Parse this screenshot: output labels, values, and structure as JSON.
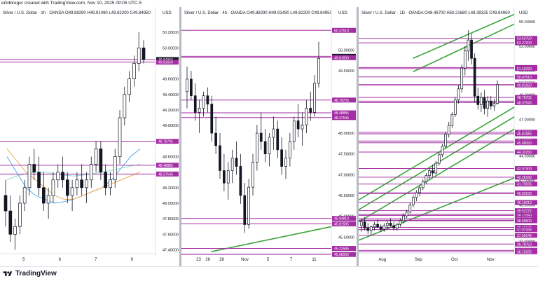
{
  "creator_line": "erlidbreger created with TradingView.com, Nov 10, 2025 09:05 UTC-5",
  "footer_brand": "TradingView",
  "colors": {
    "level": "#a42ea4",
    "up": "#ffffff",
    "down": "#131722",
    "green": "#3aa53a",
    "blue": "#4aa0e6",
    "orange": "#f0a040",
    "teal": "#7fd6d0",
    "mid": "#8f2f8f"
  },
  "chart_data": [
    {
      "type": "candlestick",
      "header": "Silver / U.S. Dollar · 1h · OANDA  O49.88290 H49.91490 L49.82200 C49.84950",
      "currency": "USD",
      "ylim": [
        47.35,
        50.4
      ],
      "y_ticks": [
        "50.20000",
        "50.00000",
        "49.60000",
        "49.40000",
        "49.20000",
        "49.00000",
        "48.60000",
        "48.20000",
        "48.00000",
        "47.80000",
        "47.60000",
        "47.40000"
      ],
      "x_ticks": [
        "5",
        "6",
        "7",
        "9"
      ],
      "levels": [
        {
          "label": "49.84950",
          "value": 49.8495,
          "style": "dark"
        },
        {
          "label": "49.81650",
          "value": 49.8165,
          "style": "normal"
        },
        {
          "label": "48.79705",
          "value": 48.797,
          "style": "normal"
        },
        {
          "label": "48.48885",
          "value": 48.4889,
          "style": "normal"
        },
        {
          "label": "48.37545",
          "value": 48.3755,
          "style": "normal"
        }
      ],
      "candles": [
        [
          48.1,
          48.3,
          47.7,
          47.9
        ],
        [
          47.9,
          48.1,
          47.5,
          47.6
        ],
        [
          47.6,
          47.8,
          47.4,
          47.7
        ],
        [
          47.7,
          48.1,
          47.6,
          48.0
        ],
        [
          48.0,
          48.3,
          47.9,
          48.2
        ],
        [
          48.2,
          48.6,
          48.1,
          48.5
        ],
        [
          48.5,
          48.7,
          48.3,
          48.4
        ],
        [
          48.4,
          48.6,
          48.1,
          48.2
        ],
        [
          48.2,
          48.4,
          47.9,
          48.0
        ],
        [
          48.0,
          48.2,
          47.8,
          48.1
        ],
        [
          48.1,
          48.4,
          48.0,
          48.3
        ],
        [
          48.3,
          48.5,
          48.2,
          48.4
        ],
        [
          48.4,
          48.6,
          48.2,
          48.3
        ],
        [
          48.3,
          48.4,
          48.0,
          48.1
        ],
        [
          48.1,
          48.3,
          47.9,
          48.2
        ],
        [
          48.2,
          48.4,
          48.1,
          48.3
        ],
        [
          48.3,
          48.5,
          48.1,
          48.2
        ],
        [
          48.2,
          48.4,
          48.0,
          48.3
        ],
        [
          48.3,
          48.6,
          48.2,
          48.5
        ],
        [
          48.5,
          48.8,
          48.4,
          48.7
        ],
        [
          48.7,
          48.8,
          48.3,
          48.4
        ],
        [
          48.4,
          48.5,
          48.1,
          48.2
        ],
        [
          48.2,
          48.4,
          48.1,
          48.3
        ],
        [
          48.3,
          48.7,
          48.2,
          48.6
        ],
        [
          48.6,
          49.2,
          48.5,
          49.1
        ],
        [
          49.1,
          49.5,
          49.0,
          49.4
        ],
        [
          49.4,
          49.7,
          49.3,
          49.6
        ],
        [
          49.6,
          49.9,
          49.5,
          49.8
        ],
        [
          49.8,
          50.2,
          49.7,
          50.0
        ],
        [
          50.0,
          50.1,
          49.8,
          49.85
        ]
      ],
      "ma": [
        {
          "color": "#4aa0e6",
          "values": [
            48.6,
            48.4,
            48.2,
            48.1,
            48.05,
            48.0,
            48.02,
            48.05,
            48.1,
            48.15,
            48.2,
            48.3,
            48.45,
            48.6,
            48.7
          ]
        },
        {
          "color": "#f0a040",
          "values": [
            48.7,
            48.55,
            48.4,
            48.3,
            48.2,
            48.1,
            48.05,
            48.05,
            48.1,
            48.15,
            48.2,
            48.25,
            48.3,
            48.35,
            48.4
          ]
        },
        {
          "color": "#7fd6d0",
          "values": [
            48.3,
            48.35,
            48.38,
            48.4,
            48.4,
            48.38,
            48.36,
            48.35,
            48.36,
            48.38,
            48.4,
            48.42,
            48.45,
            48.48,
            48.5
          ]
        }
      ]
    },
    {
      "type": "candlestick",
      "header": "Silver / U.S. Dollar · 4h · OANDA  O49.88290 H49.91490 L49.82200 C49.84950",
      "currency": "USD",
      "ylim": [
        45.1,
        50.8
      ],
      "y_ticks": [
        "50.00000",
        "49.50000",
        "48.50000",
        "48.00000",
        "47.50000",
        "47.00000",
        "46.50000",
        "46.00000",
        "45.50000"
      ],
      "x_ticks": [
        "23",
        "28",
        "Nov",
        "5",
        "7",
        "11"
      ],
      "x_tick_extra": "26",
      "levels": [
        {
          "label": "50.47510",
          "value": 50.4751,
          "style": "normal"
        },
        {
          "label": "49.84950",
          "value": 49.8495,
          "style": "dark"
        },
        {
          "label": "49.81650",
          "value": 49.8165,
          "style": "normal"
        },
        {
          "label": "48.79705",
          "value": 48.797,
          "style": "normal"
        },
        {
          "label": "48.48885",
          "value": 48.4889,
          "style": "normal"
        },
        {
          "label": "48.37545",
          "value": 48.3755,
          "style": "normal"
        },
        {
          "label": "45.94810",
          "value": 45.9481,
          "style": "normal"
        },
        {
          "label": "45.81585",
          "value": 45.8159,
          "style": "normal"
        },
        {
          "label": "45.22585",
          "value": 45.2259,
          "style": "normal"
        },
        {
          "label": "45.08050",
          "value": 45.0805,
          "style": "normal"
        }
      ],
      "trend": [
        [
          0.2,
          45.15
        ],
        [
          1.0,
          45.75
        ]
      ],
      "candles": [
        [
          49.0,
          49.6,
          48.6,
          49.3
        ],
        [
          49.3,
          49.5,
          48.8,
          48.9
        ],
        [
          48.9,
          49.2,
          48.3,
          48.5
        ],
        [
          48.5,
          48.8,
          48.0,
          48.6
        ],
        [
          48.6,
          49.0,
          48.4,
          48.9
        ],
        [
          48.9,
          49.1,
          48.5,
          48.7
        ],
        [
          48.7,
          48.9,
          47.8,
          48.0
        ],
        [
          48.0,
          48.4,
          47.5,
          47.7
        ],
        [
          47.7,
          48.0,
          46.9,
          47.1
        ],
        [
          47.1,
          47.5,
          46.6,
          46.8
        ],
        [
          46.8,
          47.3,
          46.4,
          47.1
        ],
        [
          47.1,
          47.6,
          46.8,
          47.4
        ],
        [
          47.4,
          47.8,
          47.0,
          47.2
        ],
        [
          47.2,
          47.5,
          46.3,
          46.5
        ],
        [
          46.5,
          46.8,
          45.6,
          45.8
        ],
        [
          45.8,
          46.9,
          45.7,
          46.7
        ],
        [
          46.7,
          47.5,
          46.5,
          47.3
        ],
        [
          47.3,
          48.2,
          47.1,
          48.0
        ],
        [
          48.0,
          48.5,
          47.6,
          47.8
        ],
        [
          47.8,
          48.1,
          47.3,
          47.5
        ],
        [
          47.5,
          48.0,
          47.2,
          47.9
        ],
        [
          47.9,
          48.4,
          47.6,
          48.1
        ],
        [
          48.1,
          48.3,
          47.4,
          47.6
        ],
        [
          47.6,
          47.9,
          47.0,
          47.2
        ],
        [
          47.2,
          47.6,
          46.9,
          47.4
        ],
        [
          47.4,
          48.0,
          47.2,
          47.8
        ],
        [
          47.8,
          48.4,
          47.6,
          48.3
        ],
        [
          48.3,
          48.7,
          47.9,
          48.1
        ],
        [
          48.1,
          48.5,
          47.7,
          48.2
        ],
        [
          48.2,
          48.8,
          48.0,
          48.6
        ],
        [
          48.6,
          49.0,
          48.3,
          48.5
        ],
        [
          48.5,
          49.4,
          48.4,
          49.2
        ],
        [
          49.2,
          50.2,
          49.1,
          49.8
        ]
      ]
    },
    {
      "type": "candlestick",
      "header": "Silver / U.S. Dollar · 1D · OANDA  O48.48700 H50.21680 L48.39325 C49.84950",
      "currency": "USD",
      "ylim": [
        36.0,
        55.4
      ],
      "y_ticks": [
        "55.00000",
        "53.00000",
        "51.00000",
        "50.00000",
        "49.00000",
        "47.00000",
        "46.00000",
        "44.00000",
        "43.00000",
        "42.00000",
        "41.00000",
        "40.00000",
        "39.00000",
        "38.00000",
        "37.00000"
      ],
      "x_ticks": [
        "Aug",
        "Sep",
        "Oct",
        "Nov"
      ],
      "levels": [
        {
          "label": "53.63750",
          "value": 53.6375,
          "style": "normal"
        },
        {
          "label": "53.27200",
          "value": 53.272,
          "style": "normal"
        },
        {
          "label": "51.24750",
          "value": 51.2475,
          "style": "normal"
        },
        {
          "label": "51.16220",
          "value": 51.1622,
          "style": "normal"
        },
        {
          "label": "50.47510",
          "value": 50.4751,
          "style": "normal"
        },
        {
          "label": "49.84950",
          "value": 49.8495,
          "style": "grey"
        },
        {
          "label": "49.81650",
          "value": 49.8165,
          "style": "normal"
        },
        {
          "label": "48.79705",
          "value": 48.797,
          "style": "normal"
        },
        {
          "label": "48.48885",
          "value": 48.4889,
          "style": "normal"
        },
        {
          "label": "48.37545",
          "value": 48.3755,
          "style": "normal"
        },
        {
          "label": "45.94810",
          "value": 45.9481,
          "style": "normal"
        },
        {
          "label": "45.81585",
          "value": 45.8159,
          "style": "normal"
        },
        {
          "label": "45.22585",
          "value": 45.2259,
          "style": "normal"
        },
        {
          "label": "45.08050",
          "value": 45.0805,
          "style": "normal"
        },
        {
          "label": "44.32250",
          "value": 44.3225,
          "style": "normal"
        },
        {
          "label": "42.97300",
          "value": 42.973,
          "style": "normal"
        },
        {
          "label": "42.26160",
          "value": 42.2616,
          "style": "normal"
        },
        {
          "label": "41.70595",
          "value": 41.706,
          "style": "normal"
        },
        {
          "label": "40.97785",
          "value": 40.9779,
          "style": "normal"
        },
        {
          "label": "40.93230",
          "value": 40.9323,
          "style": "normal"
        },
        {
          "label": "40.19013",
          "value": 40.1901,
          "style": "normal"
        },
        {
          "label": "39.52275",
          "value": 39.5228,
          "style": "normal"
        },
        {
          "label": "39.22870",
          "value": 39.2287,
          "style": "normal"
        },
        {
          "label": "39.13280",
          "value": 39.1328,
          "style": "normal"
        },
        {
          "label": "38.86450",
          "value": 38.8645,
          "style": "normal"
        },
        {
          "label": "38.73800",
          "value": 38.738,
          "style": "normal"
        },
        {
          "label": "38.69500",
          "value": 38.695,
          "style": "normal"
        },
        {
          "label": "38.15530",
          "value": 38.1553,
          "style": "normal"
        },
        {
          "label": "37.97335",
          "value": 37.9734,
          "style": "normal"
        },
        {
          "label": "37.50145",
          "value": 37.5015,
          "style": "normal"
        },
        {
          "label": "36.78750",
          "value": 36.7875,
          "style": "normal"
        },
        {
          "label": "36.27450",
          "value": 36.2745,
          "style": "normal"
        },
        {
          "label": "36.15695",
          "value": 36.157,
          "style": "normal"
        }
      ],
      "trends": [
        [
          [
            0.0,
            38.6
          ],
          [
            1.0,
            46.2
          ]
        ],
        [
          [
            0.0,
            39.6
          ],
          [
            1.0,
            47.2
          ]
        ],
        [
          [
            0.0,
            40.4
          ],
          [
            1.0,
            48.0
          ]
        ],
        [
          [
            0.35,
            50.9
          ],
          [
            1.0,
            54.8
          ]
        ],
        [
          [
            0.35,
            52.0
          ],
          [
            1.0,
            55.6
          ]
        ],
        [
          [
            0.0,
            37.1
          ],
          [
            1.0,
            42.2
          ]
        ]
      ],
      "candles": [
        [
          38.3,
          38.9,
          37.8,
          38.6
        ],
        [
          38.6,
          39.0,
          37.9,
          38.1
        ],
        [
          38.1,
          38.5,
          37.6,
          37.9
        ],
        [
          37.9,
          38.3,
          37.5,
          38.2
        ],
        [
          38.2,
          38.6,
          37.9,
          38.4
        ],
        [
          38.4,
          38.8,
          38.1,
          38.2
        ],
        [
          38.2,
          38.4,
          37.8,
          38.0
        ],
        [
          38.0,
          38.5,
          37.8,
          38.3
        ],
        [
          38.3,
          38.7,
          38.0,
          38.5
        ],
        [
          38.5,
          38.9,
          38.2,
          38.3
        ],
        [
          38.3,
          38.6,
          37.9,
          38.1
        ],
        [
          38.1,
          38.5,
          37.9,
          38.4
        ],
        [
          38.4,
          38.9,
          38.2,
          38.7
        ],
        [
          38.7,
          39.3,
          38.5,
          39.1
        ],
        [
          39.1,
          39.6,
          38.9,
          39.4
        ],
        [
          39.4,
          40.2,
          39.3,
          40.0
        ],
        [
          40.0,
          40.8,
          39.8,
          40.6
        ],
        [
          40.6,
          41.2,
          40.3,
          41.0
        ],
        [
          41.0,
          41.6,
          40.7,
          41.4
        ],
        [
          41.4,
          42.1,
          41.2,
          41.9
        ],
        [
          41.9,
          42.6,
          41.7,
          42.4
        ],
        [
          42.4,
          43.0,
          42.1,
          42.8
        ],
        [
          42.8,
          43.3,
          42.3,
          42.6
        ],
        [
          42.6,
          43.6,
          42.5,
          43.4
        ],
        [
          43.4,
          44.3,
          43.2,
          44.1
        ],
        [
          44.1,
          45.0,
          43.9,
          44.8
        ],
        [
          44.8,
          46.0,
          44.6,
          45.8
        ],
        [
          45.8,
          46.8,
          45.5,
          46.5
        ],
        [
          46.5,
          47.6,
          46.3,
          47.4
        ],
        [
          47.4,
          48.8,
          47.2,
          48.6
        ],
        [
          48.6,
          49.8,
          48.3,
          49.5
        ],
        [
          49.5,
          51.5,
          49.2,
          51.2
        ],
        [
          51.2,
          53.0,
          50.6,
          52.6
        ],
        [
          52.6,
          54.3,
          51.8,
          53.5
        ],
        [
          53.5,
          54.0,
          51.5,
          52.0
        ],
        [
          52.0,
          52.4,
          48.4,
          48.9
        ],
        [
          48.9,
          49.6,
          47.8,
          48.2
        ],
        [
          48.2,
          49.2,
          47.6,
          48.8
        ],
        [
          48.8,
          49.4,
          47.4,
          47.9
        ],
        [
          47.9,
          48.9,
          47.2,
          48.5
        ],
        [
          48.5,
          48.9,
          47.8,
          48.1
        ],
        [
          48.1,
          48.7,
          47.7,
          48.3
        ],
        [
          48.3,
          50.2,
          48.2,
          49.85
        ]
      ]
    }
  ]
}
